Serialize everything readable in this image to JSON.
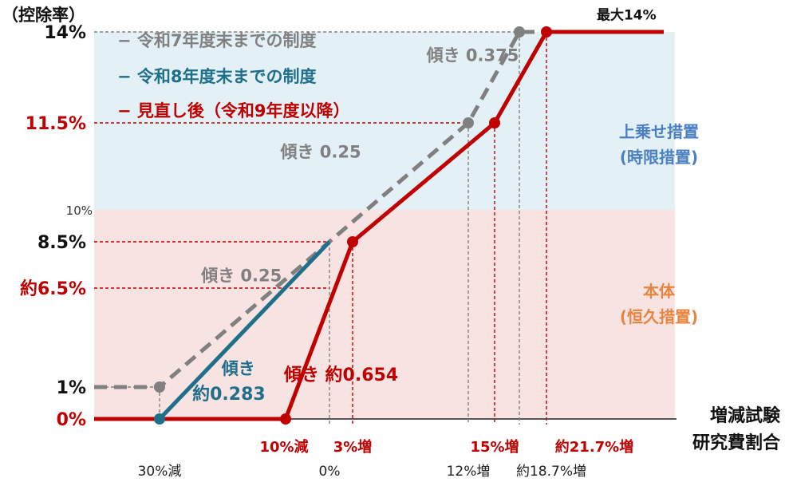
{
  "chart_data": {
    "type": "line",
    "y_axis_title": "（控除率）",
    "x_axis_title_lines": [
      "増減試験",
      "研究費割合"
    ],
    "y_ticks": [
      {
        "value": 14,
        "label": "14%",
        "color": "#111111"
      },
      {
        "value": 11.5,
        "label": "11.5%",
        "color": "#c00000"
      },
      {
        "value": 10,
        "label": "10%",
        "color": "#333333"
      },
      {
        "value": 8.5,
        "label": "8.5%",
        "color": "#111111"
      },
      {
        "value": 6.5,
        "label": "約6.5%",
        "color": "#c00000"
      },
      {
        "value": 1,
        "label": "1%",
        "color": "#111111"
      },
      {
        "value": 0,
        "label": "0%",
        "color": "#c00000"
      }
    ],
    "x_ticks_upper": [
      {
        "value": -10,
        "label": "10%減",
        "color": "#c00000"
      },
      {
        "value": 3,
        "label": "3%増",
        "color": "#c00000"
      },
      {
        "value": 15,
        "label": "15%増",
        "color": "#c00000"
      },
      {
        "value": 21.7,
        "label": "約21.7%増",
        "color": "#c00000"
      }
    ],
    "x_ticks_lower": [
      {
        "value": -30,
        "label": "30%減",
        "color": "#222222"
      },
      {
        "value": 0,
        "label": "0%",
        "color": "#222222"
      },
      {
        "value": 12,
        "label": "12%増",
        "color": "#222222"
      },
      {
        "value": 18.7,
        "label": "約18.7%増",
        "color": "#222222"
      }
    ],
    "regions": [
      {
        "y_from": 10,
        "y_to": 14,
        "label_lines": [
          "上乗せ措置",
          "(時限措置)"
        ],
        "fill": "#e3f0f5",
        "label_color": "#4a7fc1"
      },
      {
        "y_from": 0,
        "y_to": 10,
        "label_lines": [
          "本体",
          "(恒久措置)"
        ],
        "fill": "#f8e3e3",
        "label_color": "#e8843f"
      }
    ],
    "series": [
      {
        "name": "令和7年度末までの制度",
        "color": "#808080",
        "dashed": true,
        "x": [
          -45,
          -30,
          12,
          18.7,
          28
        ],
        "y": [
          1,
          1,
          11.5,
          14,
          14
        ]
      },
      {
        "name": "令和8年度末までの制度",
        "color": "#1f6f8b",
        "dashed": false,
        "x": [
          -45,
          -30,
          0
        ],
        "y": [
          0,
          0,
          8.5
        ]
      },
      {
        "name": "見直し後（令和9年度以降）",
        "color": "#c00000",
        "dashed": false,
        "x": [
          -45,
          -10,
          3,
          15,
          21.7,
          28
        ],
        "y": [
          0,
          0,
          8.5,
          11.5,
          14,
          14
        ]
      }
    ],
    "annotations": [
      {
        "text": "傾き 0.375",
        "color": "#808080",
        "x": 12.5,
        "y": 13.2
      },
      {
        "text": "傾き 0.25",
        "color": "#808080",
        "x": -2,
        "y": 10.9
      },
      {
        "text": "傾き 0.25",
        "color": "#808080",
        "x": -17,
        "y": 6.8
      },
      {
        "text": "傾き",
        "color": "#1f6f8b",
        "x": -17.5,
        "y": 1.7
      },
      {
        "text": "約0.283",
        "color": "#1f6f8b",
        "x": -19,
        "y": 0.6
      },
      {
        "text": "傾き 約0.654",
        "color": "#c00000",
        "x": 1.5,
        "y": 1.35
      },
      {
        "text": "最大14%",
        "color": "#111111",
        "x": 26,
        "y": 14.6
      }
    ]
  }
}
